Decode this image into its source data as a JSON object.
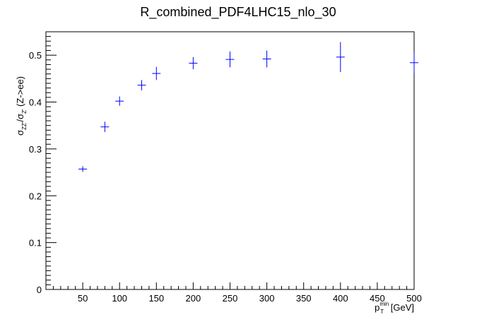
{
  "chart_data": {
    "type": "scatter",
    "title": "R_combined_PDF4LHC15_nlo_30",
    "xlabel": "p_T^min [GeV]",
    "xlabel_parts": {
      "main": "p",
      "sub": "T",
      "sup": "min",
      "unit": " [GeV]"
    },
    "ylabel": "σ_ZZ'/σ_Z'(Z->ee)",
    "ylabel_parts": {
      "sigma1": "σ",
      "sub1": "ZZ'",
      "slash": "/",
      "sigma2": "σ",
      "sub2": "Z'",
      "rest": " (Z->ee)"
    },
    "xlim": [
      0,
      500
    ],
    "ylim": [
      0,
      0.55
    ],
    "x_ticks": [
      50,
      100,
      150,
      200,
      250,
      300,
      350,
      400,
      450,
      500
    ],
    "x_tick_labels": [
      "50",
      "100",
      "150",
      "200",
      "250",
      "300",
      "350",
      "400",
      "450",
      "500"
    ],
    "y_ticks": [
      0,
      0.1,
      0.2,
      0.3,
      0.4,
      0.5
    ],
    "y_tick_labels": [
      "0",
      "0.1",
      "0.2",
      "0.3",
      "0.4",
      "0.5"
    ],
    "grid": false,
    "marker_color": "#0000ff",
    "series": [
      {
        "points": [
          {
            "x": 50,
            "y": 0.257,
            "yerr": 0.006,
            "xerr": 4
          },
          {
            "x": 80,
            "y": 0.347,
            "yerr": 0.011,
            "xerr": 4
          },
          {
            "x": 100,
            "y": 0.402,
            "yerr": 0.01,
            "xerr": 4
          },
          {
            "x": 130,
            "y": 0.436,
            "yerr": 0.011,
            "xerr": 4
          },
          {
            "x": 150,
            "y": 0.461,
            "yerr": 0.014,
            "xerr": 4
          },
          {
            "x": 200,
            "y": 0.483,
            "yerr": 0.013,
            "xerr": 4
          },
          {
            "x": 250,
            "y": 0.491,
            "yerr": 0.017,
            "xerr": 4
          },
          {
            "x": 300,
            "y": 0.492,
            "yerr": 0.018,
            "xerr": 4
          },
          {
            "x": 400,
            "y": 0.496,
            "yerr": 0.032,
            "xerr": 4
          },
          {
            "x": 500,
            "y": 0.484,
            "yerr": 0.022,
            "xerr": 4
          }
        ]
      }
    ]
  }
}
